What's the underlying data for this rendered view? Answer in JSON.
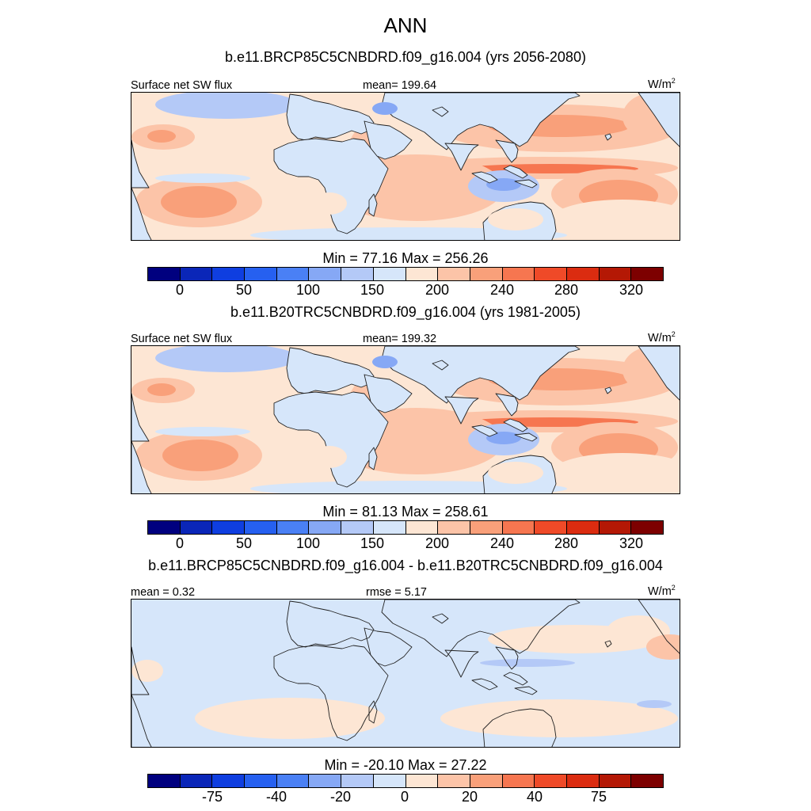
{
  "title": "ANN",
  "colors": {
    "palette": [
      "#00007f",
      "#0a26b8",
      "#0f3ee0",
      "#2660f0",
      "#4a80f5",
      "#86a8f5",
      "#b4c9f7",
      "#d6e6fa",
      "#fde6d4",
      "#fcc4a8",
      "#f9a07a",
      "#f67650",
      "#ef4a28",
      "#db2c10",
      "#b41805",
      "#7d0000"
    ],
    "land": "#d6e6fa",
    "coast": "#222222"
  },
  "panels": [
    {
      "title": "b.e11.BRCP85C5CNBDRD.f09_g16.004 (yrs 2056-2080)",
      "left_label": "Surface net SW flux",
      "center_label": "mean= 199.64",
      "units": "W/m",
      "units_sup": "2",
      "minmax": "Min =  77.16 Max = 256.26",
      "ticks": [
        "0",
        "50",
        "100",
        "150",
        "200",
        "240",
        "280",
        "320"
      ]
    },
    {
      "title": "b.e11.B20TRC5CNBDRD.f09_g16.004 (yrs 1981-2005)",
      "left_label": "Surface net SW flux",
      "center_label": "mean= 199.32",
      "units": "W/m",
      "units_sup": "2",
      "minmax": "Min =  81.13 Max = 258.61",
      "ticks": [
        "0",
        "50",
        "100",
        "150",
        "200",
        "240",
        "280",
        "320"
      ]
    },
    {
      "title": "b.e11.BRCP85C5CNBDRD.f09_g16.004 - b.e11.B20TRC5CNBDRD.f09_g16.004",
      "left_label": "mean =   0.32",
      "center_label": "rmse =   5.17",
      "units": "W/m",
      "units_sup": "2",
      "minmax": "Min = -20.10 Max =  27.22",
      "ticks": [
        "-75",
        "-40",
        "-20",
        "0",
        "20",
        "40",
        "75"
      ]
    }
  ]
}
